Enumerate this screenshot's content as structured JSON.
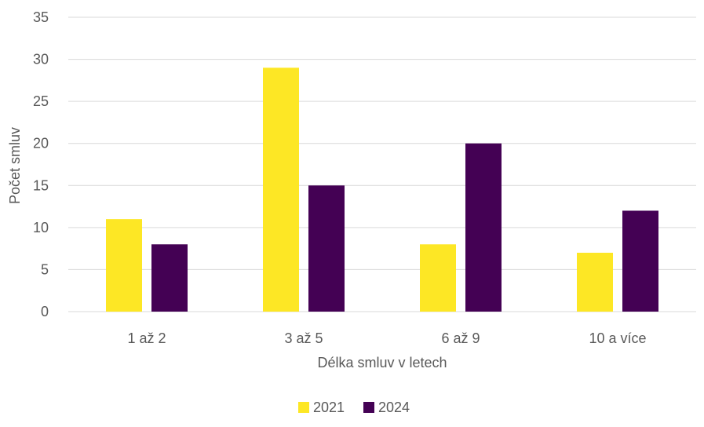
{
  "chart_data": {
    "type": "bar",
    "title": "",
    "xlabel": "Délka smluv v letech",
    "ylabel": "Počet smluv",
    "categories": [
      "1 až 2",
      "3 až 5",
      "6 až 9",
      "10 a více"
    ],
    "series": [
      {
        "name": "2021",
        "values": [
          11,
          29,
          8,
          7
        ],
        "color": "#FDE725"
      },
      {
        "name": "2024",
        "values": [
          8,
          15,
          20,
          12
        ],
        "color": "#440154"
      }
    ],
    "ylim": [
      0,
      35
    ],
    "yticks": [
      0,
      5,
      10,
      15,
      20,
      25,
      30,
      35
    ],
    "grid": true,
    "legend": "bottom-center"
  }
}
